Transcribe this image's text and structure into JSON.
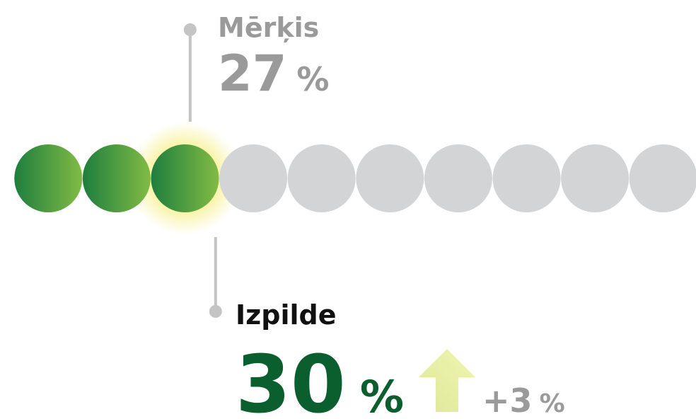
{
  "scale": [
    0,
    100
  ],
  "target": {
    "label": "Mērķis",
    "value": 27,
    "unit": "%"
  },
  "actual": {
    "label": "Izpilde",
    "value": 30,
    "unit": "%"
  },
  "change": {
    "value": 3,
    "label": "+3",
    "unit": "%"
  },
  "colors": {
    "filled_start": "#1e7e3e",
    "filled_end": "#82bb44",
    "empty": "#d3d4d6",
    "actual_text": "#0b5e2e",
    "muted": "#9a9a9a"
  }
}
